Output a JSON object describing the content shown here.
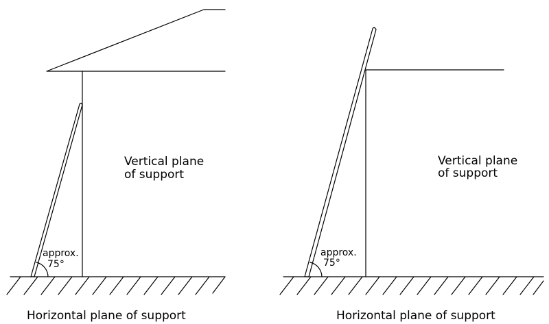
{
  "colors": {
    "background": "#ffffff",
    "line": "#000000"
  },
  "left_panel": {
    "vertical_label_line1": "Vertical plane",
    "vertical_label_line2": "of support",
    "angle_label_line1": "approx.",
    "angle_label_line2": "75°",
    "horizontal_label": "Horizontal plane of support"
  },
  "right_panel": {
    "vertical_label_line1": "Vertical plane",
    "vertical_label_line2": "of support",
    "angle_label_line1": "approx.",
    "angle_label_line2": "75°",
    "horizontal_label": "Horizontal plane of support"
  }
}
